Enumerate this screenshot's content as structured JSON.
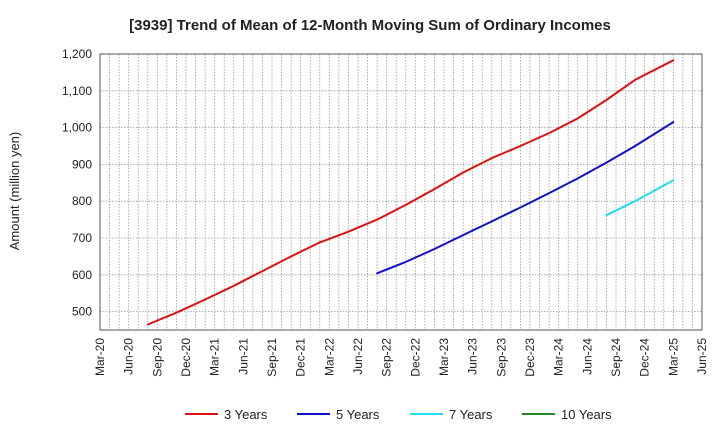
{
  "chart_data": {
    "type": "line",
    "title": "[3939]  Trend of Mean of 12-Month Moving Sum of Ordinary Incomes",
    "ylabel": "Amount (million yen)",
    "xlabel": "",
    "ylim": [
      450,
      1200
    ],
    "y_ticks": [
      500,
      600,
      700,
      800,
      900,
      1000,
      1100,
      1200
    ],
    "y_tick_labels": [
      "500",
      "600",
      "700",
      "800",
      "900",
      "1,000",
      "1,100",
      "1,200"
    ],
    "x_ticks": [
      "Mar-20",
      "Jun-20",
      "Sep-20",
      "Dec-20",
      "Mar-21",
      "Jun-21",
      "Sep-21",
      "Dec-21",
      "Mar-22",
      "Jun-22",
      "Sep-22",
      "Dec-22",
      "Mar-23",
      "Jun-23",
      "Sep-23",
      "Dec-23",
      "Mar-24",
      "Jun-24",
      "Sep-24",
      "Dec-24",
      "Mar-25",
      "Jun-25"
    ],
    "grid": true,
    "legend_position": "bottom",
    "series": [
      {
        "name": "3 Years",
        "color": "#dd1111",
        "x": [
          "Aug-20",
          "Nov-20",
          "Feb-21",
          "May-21",
          "Aug-21",
          "Nov-21",
          "Feb-22",
          "May-22",
          "Aug-22",
          "Nov-22",
          "Feb-23",
          "May-23",
          "Aug-23",
          "Nov-23",
          "Feb-24",
          "May-24",
          "Aug-24",
          "Nov-24",
          "Mar-25"
        ],
        "values": [
          465,
          497,
          533,
          570,
          610,
          650,
          688,
          717,
          750,
          790,
          833,
          878,
          917,
          950,
          985,
          1025,
          1075,
          1130,
          1183
        ]
      },
      {
        "name": "5 Years",
        "color": "#1111cc",
        "x": [
          "Aug-22",
          "Nov-22",
          "Feb-23",
          "May-23",
          "Aug-23",
          "Nov-23",
          "Feb-24",
          "May-24",
          "Aug-24",
          "Nov-24",
          "Mar-25"
        ],
        "values": [
          604,
          635,
          670,
          708,
          745,
          783,
          822,
          862,
          905,
          950,
          1015
        ]
      },
      {
        "name": "7 Years",
        "color": "#22ddee",
        "x": [
          "Aug-24",
          "Nov-24",
          "Mar-25"
        ],
        "values": [
          762,
          800,
          857
        ]
      },
      {
        "name": "10 Years",
        "color": "#228822",
        "x": [],
        "values": []
      }
    ]
  }
}
